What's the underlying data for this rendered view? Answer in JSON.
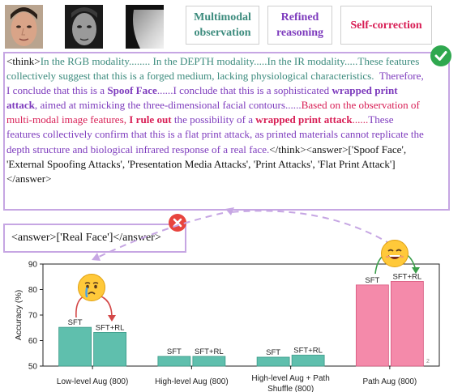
{
  "tags": [
    {
      "line1": "Multimodal",
      "line2": "observation",
      "color": "#3c8b7d"
    },
    {
      "line1": "Refined",
      "line2": "reasoning",
      "color": "#7d3bbd"
    },
    {
      "line1": "Self-correction",
      "line2": "",
      "color": "#d81e55"
    }
  ],
  "think": {
    "open_tag": "<think>",
    "s1": "In the RGB modality........ In the DEPTH modality.....In the IR modality.....These features collectively suggest that this is a forged medium, lacking physiological characteristics.",
    "s2a": "Therefore, I conclude that this is a ",
    "s2b": "Spoof Face",
    "s2c": "......I conclude that this is a sophisticated ",
    "s2d": "wrapped print attack",
    "s2e": ", aimed at mimicking the three-dimensional facial contours......",
    "s3a": "Based on the observation of multi-modal image features, ",
    "s3b": "I rule out",
    "s3c": " the possibility of a ",
    "s3d": "wrapped print attack",
    "s3e": "......",
    "s4": "These features collectively confirm that this is a flat print attack, as printed materials cannot replicate the depth structure and biological infrared response of a real face.",
    "close_tag": "</think>",
    "answer": "<answer>['Spoof Face', 'External Spoofing Attacks', 'Presentation Media Attacks', 'Print Attacks', 'Flat Print Attack']</answer>"
  },
  "wrong_answer": "<answer>['Real Face']</answer>",
  "icons": {
    "correct": "green-check-icon",
    "wrong": "red-x-icon",
    "sad": "crying-emoji-icon",
    "happy": "grinning-emoji-icon"
  },
  "colors": {
    "teal_bar": "#5fbfad",
    "pink_bar": "#f48aaa",
    "box_border": "#c6a6e3"
  },
  "chart_data": {
    "type": "bar",
    "ylabel": "Accuracy (%)",
    "ylim": [
      50,
      90
    ],
    "yticks": [
      50,
      60,
      70,
      80,
      90
    ],
    "categories": [
      "Low-level Aug (800)",
      "High-level Aug (800)",
      "High-level Aug + Path Shuffle (800)",
      "Path Aug (800)"
    ],
    "series": [
      {
        "name": "SFT",
        "values": [
          65.2,
          53.8,
          53.5,
          81.8
        ]
      },
      {
        "name": "SFT+RL",
        "values": [
          63.2,
          53.8,
          54.3,
          83.2
        ]
      }
    ],
    "corner_mark": "2"
  }
}
